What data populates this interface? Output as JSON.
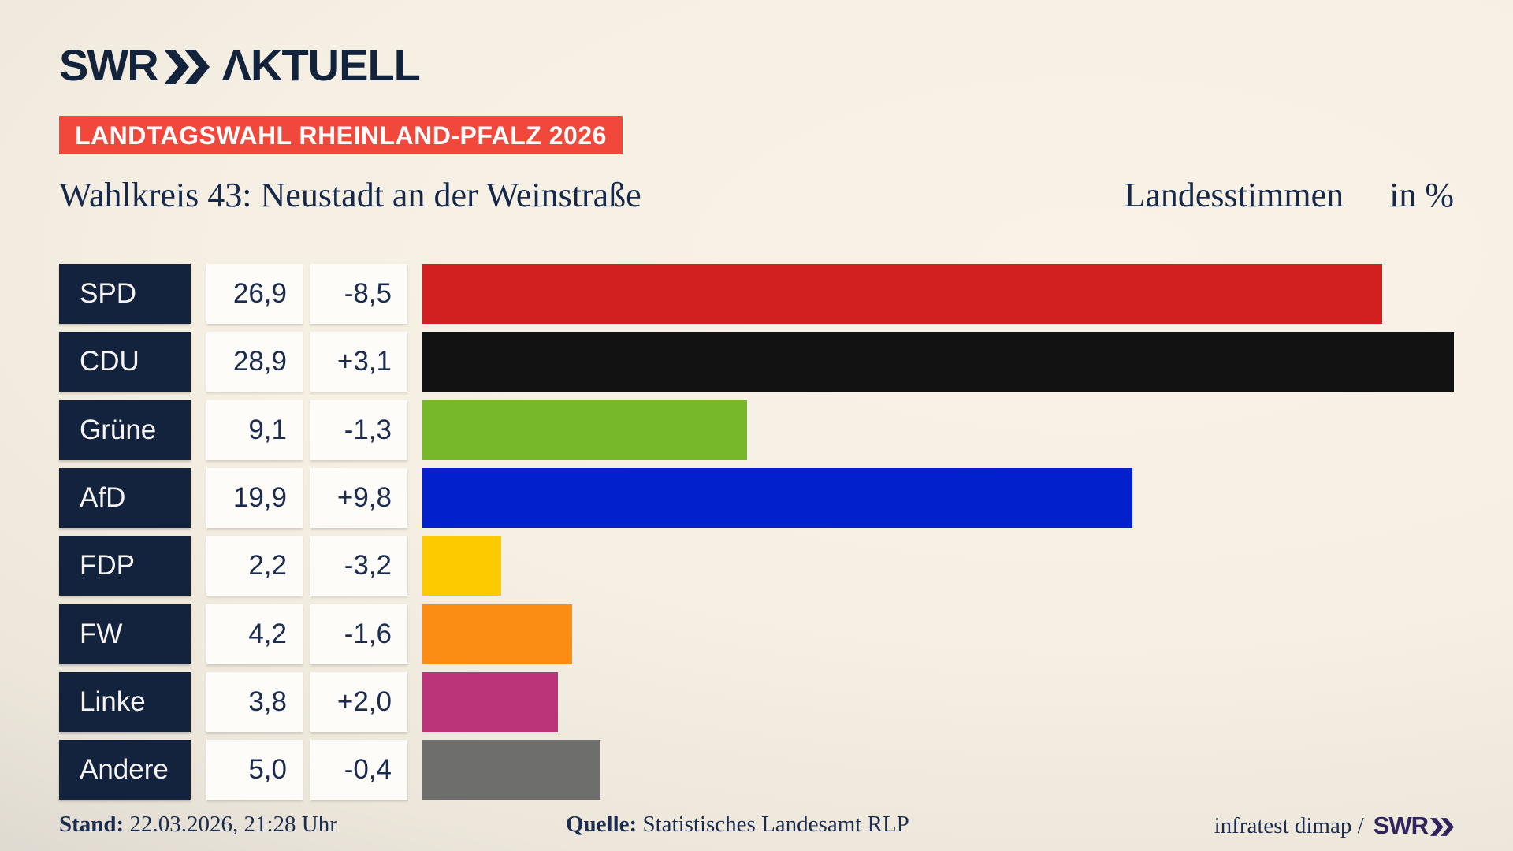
{
  "logo": {
    "brand": "SWR",
    "suffix": "ΛKTUELL"
  },
  "banner": {
    "text": "LANDTAGSWAHL RHEINLAND-PFALZ 2026",
    "bg_color": "#f0483a"
  },
  "title": {
    "left": "Wahlkreis 43: Neustadt an der Weinstraße",
    "right": "Landesstimmen",
    "unit": "in %"
  },
  "chart_data": {
    "type": "bar",
    "orientation": "horizontal",
    "title": "Wahlkreis 43: Neustadt an der Weinstraße — Landesstimmen in %",
    "unit": "%",
    "categories": [
      "SPD",
      "CDU",
      "Grüne",
      "AfD",
      "FDP",
      "FW",
      "Linke",
      "Andere"
    ],
    "values": [
      26.9,
      28.9,
      9.1,
      19.9,
      2.2,
      4.2,
      3.8,
      5.0
    ],
    "value_labels": [
      "26,9",
      "28,9",
      "9,1",
      "19,9",
      "2,2",
      "4,2",
      "3,8",
      "5,0"
    ],
    "changes": [
      -8.5,
      3.1,
      -1.3,
      9.8,
      -3.2,
      -1.6,
      2.0,
      -0.4
    ],
    "change_labels": [
      "-8,5",
      "+3,1",
      "-1,3",
      "+9,8",
      "-3,2",
      "-1,6",
      "+2,0",
      "-0,4"
    ],
    "bar_colors": [
      "#d21f1f",
      "#121212",
      "#76b82a",
      "#0221cd",
      "#fdca00",
      "#fb8d14",
      "#bb3378",
      "#6e6e6d"
    ],
    "xlim": [
      0,
      28.9
    ],
    "grid": false,
    "legend": false,
    "label_box_color": "#13233e",
    "value_box_color": "#fdfcf9"
  },
  "footer": {
    "stand_label": "Stand:",
    "stand_value": "22.03.2026, 21:28 Uhr",
    "quelle_label": "Quelle:",
    "quelle_value": "Statistisches Landesamt RLP",
    "credit_text": "infratest dimap /",
    "credit_brand": "SWR"
  }
}
